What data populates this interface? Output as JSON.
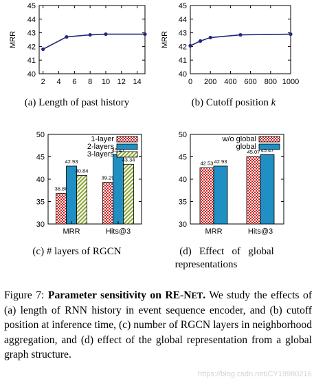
{
  "subcaptions": {
    "a": "(a) Length of past history",
    "b_prefix": "(b) Cutoff position ",
    "b_var": "k",
    "c": "(c) # layers of RGCN",
    "d_line1": "(d)   Effect   of   global",
    "d_line2": "representations"
  },
  "caption": {
    "prefix": "Figure 7: ",
    "bold_a": "Parameter sensitivity on RE-N",
    "bold_sc": "ET",
    "bold_end": ".",
    "body": " We study the effects of (a) length of RNN history in event sequence encoder, and (b) cutoff position at inference time, (c) number of RGCN layers in neighborhood aggregation, and (d) effect of the global representation from a global graph structure."
  },
  "watermark": "https://blog.csdn.net/CY19980216",
  "colors": {
    "line": "#22297a",
    "red": "#d11f1f",
    "blue": "#1f8fc4",
    "green": "#8aa630"
  },
  "chart_data": [
    {
      "type": "line",
      "id": "a",
      "x": [
        2,
        5,
        8,
        10,
        15
      ],
      "y": [
        41.8,
        42.7,
        42.85,
        42.9,
        42.9
      ],
      "ylabel": "MRR",
      "xlim": [
        1.5,
        15
      ],
      "ylim": [
        40,
        45
      ],
      "xticks": [
        "2",
        "4",
        "6",
        "8",
        "10",
        "12",
        "14"
      ],
      "yticks": [
        "40",
        "41",
        "42",
        "43",
        "44",
        "45"
      ]
    },
    {
      "type": "line",
      "id": "b",
      "x": [
        0,
        100,
        200,
        500,
        1000
      ],
      "y": [
        42.05,
        42.4,
        42.65,
        42.85,
        42.9
      ],
      "ylabel": "MRR",
      "xlim": [
        0,
        1000
      ],
      "ylim": [
        40,
        45
      ],
      "xticks": [
        "0",
        "200",
        "400",
        "600",
        "800",
        "1000"
      ],
      "yticks": [
        "40",
        "41",
        "42",
        "43",
        "44",
        "45"
      ]
    },
    {
      "type": "bar",
      "id": "c",
      "categories": [
        "MRR",
        "Hits@3"
      ],
      "series": [
        {
          "name": "1-layer",
          "values": [
            36.86,
            39.29
          ],
          "labels": [
            "36.86",
            "39.29"
          ]
        },
        {
          "name": "2-layers",
          "values": [
            42.93,
            45.47
          ],
          "labels": [
            "42.93",
            "45.47"
          ]
        },
        {
          "name": "3-layers",
          "values": [
            40.84,
            43.34
          ],
          "labels": [
            "40.84",
            "43.34"
          ]
        }
      ],
      "ylim": [
        30,
        50
      ],
      "yticks": [
        "30",
        "35",
        "40",
        "45",
        "50"
      ],
      "legend": "top-right"
    },
    {
      "type": "bar",
      "id": "d",
      "categories": [
        "MRR",
        "Hits@3"
      ],
      "series": [
        {
          "name": "w/o global",
          "values": [
            42.53,
            45.07
          ],
          "labels": [
            "42.53",
            "45.07"
          ]
        },
        {
          "name": "global",
          "values": [
            42.93,
            45.47
          ],
          "labels": [
            "42.93",
            "45.47"
          ]
        }
      ],
      "ylim": [
        30,
        50
      ],
      "yticks": [
        "30",
        "35",
        "40",
        "45",
        "50"
      ],
      "legend": "top-right"
    }
  ]
}
